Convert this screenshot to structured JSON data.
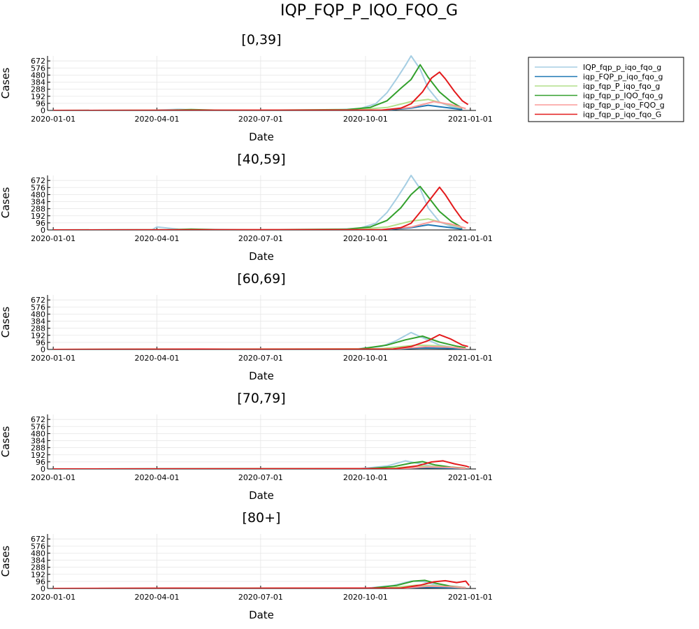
{
  "figure_title": "IQP_FQP_P_IQO_FQO_G",
  "legend": {
    "placement": "outer-right",
    "entries": [
      {
        "label": "IQP_fqp_p_iqo_fqo_g",
        "color": "#a6cee3"
      },
      {
        "label": "iqp_FQP_p_iqo_fqo_g",
        "color": "#1f78b4"
      },
      {
        "label": "iqp_fqp_P_iqo_fqo_g",
        "color": "#b2df8a"
      },
      {
        "label": "iqp_fqp_p_IQO_fqo_g",
        "color": "#33a02c"
      },
      {
        "label": "iqp_fqp_p_iqo_FQO_g",
        "color": "#fb9a99"
      },
      {
        "label": "iqp_fqp_p_iqo_fqo_G",
        "color": "#e31a1c"
      }
    ]
  },
  "chart_data": [
    {
      "type": "line",
      "title": "[0,39]",
      "xlabel": "Date",
      "ylabel": "Cases",
      "x_ticks": [
        "2020-01-01",
        "2020-04-01",
        "2020-07-01",
        "2020-10-01",
        "2021-01-01"
      ],
      "y_ticks": [
        0,
        96,
        192,
        288,
        384,
        480,
        576,
        672
      ],
      "xlim": [
        "2019-12-27",
        "2021-01-06"
      ],
      "ylim": [
        0,
        740
      ],
      "grid": true,
      "series": [
        {
          "name": "IQP_fqp_p_iqo_fqo_g",
          "x": [
            "2020-01-01",
            "2020-03-28",
            "2020-04-20",
            "2020-05-10",
            "2020-07-01",
            "2020-09-01",
            "2020-09-25",
            "2020-10-10",
            "2020-10-20",
            "2020-10-28",
            "2020-11-05",
            "2020-11-10",
            "2020-11-18",
            "2020-11-25",
            "2020-12-05",
            "2020-12-15",
            "2020-12-25"
          ],
          "y": [
            0,
            3,
            15,
            5,
            2,
            6,
            20,
            90,
            240,
            420,
            610,
            740,
            560,
            300,
            110,
            50,
            20
          ]
        },
        {
          "name": "iqp_FQP_p_iqo_fqo_g",
          "x": [
            "2020-01-01",
            "2020-10-01",
            "2020-10-20",
            "2020-11-10",
            "2020-11-25",
            "2020-12-05",
            "2020-12-15",
            "2020-12-25"
          ],
          "y": [
            0,
            0,
            5,
            30,
            70,
            50,
            30,
            10
          ]
        },
        {
          "name": "iqp_fqp_P_iqo_fqo_g",
          "x": [
            "2020-01-01",
            "2020-09-20",
            "2020-10-20",
            "2020-11-10",
            "2020-11-25",
            "2020-12-10",
            "2020-12-25"
          ],
          "y": [
            0,
            5,
            40,
            120,
            150,
            90,
            30
          ]
        },
        {
          "name": "iqp_fqp_p_IQO_fqo_g",
          "x": [
            "2020-01-01",
            "2020-04-10",
            "2020-05-01",
            "2020-05-25",
            "2020-07-01",
            "2020-09-15",
            "2020-10-05",
            "2020-10-20",
            "2020-11-01",
            "2020-11-10",
            "2020-11-18",
            "2020-11-25",
            "2020-12-05",
            "2020-12-15",
            "2020-12-25"
          ],
          "y": [
            0,
            2,
            12,
            4,
            3,
            12,
            40,
            130,
            300,
            420,
            620,
            450,
            250,
            120,
            30
          ]
        },
        {
          "name": "iqp_fqp_p_iqo_FQO_g",
          "x": [
            "2020-01-01",
            "2020-10-15",
            "2020-11-10",
            "2020-11-30",
            "2020-12-15",
            "2020-12-28"
          ],
          "y": [
            0,
            5,
            40,
            120,
            80,
            25
          ]
        },
        {
          "name": "iqp_fqp_p_iqo_fqo_G",
          "x": [
            "2020-01-01",
            "2020-10-15",
            "2020-11-01",
            "2020-11-10",
            "2020-11-20",
            "2020-11-28",
            "2020-12-05",
            "2020-12-10",
            "2020-12-18",
            "2020-12-25",
            "2020-12-30"
          ],
          "y": [
            0,
            3,
            30,
            90,
            250,
            440,
            520,
            430,
            260,
            130,
            80
          ]
        }
      ]
    },
    {
      "type": "line",
      "title": "[40,59]",
      "xlabel": "Date",
      "ylabel": "Cases",
      "x_ticks": [
        "2020-01-01",
        "2020-04-01",
        "2020-07-01",
        "2020-10-01",
        "2021-01-01"
      ],
      "y_ticks": [
        0,
        96,
        192,
        288,
        384,
        480,
        576,
        672
      ],
      "xlim": [
        "2019-12-27",
        "2021-01-06"
      ],
      "ylim": [
        0,
        740
      ],
      "grid": true,
      "series": [
        {
          "name": "IQP_fqp_p_iqo_fqo_g",
          "x": [
            "2020-01-01",
            "2020-03-28",
            "2020-04-01",
            "2020-04-20",
            "2020-07-01",
            "2020-09-01",
            "2020-09-25",
            "2020-10-10",
            "2020-10-20",
            "2020-10-28",
            "2020-11-05",
            "2020-11-10",
            "2020-11-18",
            "2020-11-25",
            "2020-12-05",
            "2020-12-15",
            "2020-12-25"
          ],
          "y": [
            0,
            5,
            40,
            10,
            2,
            6,
            20,
            90,
            240,
            420,
            610,
            740,
            560,
            300,
            110,
            50,
            20
          ]
        },
        {
          "name": "iqp_FQP_p_iqo_fqo_g",
          "x": [
            "2020-01-01",
            "2020-10-01",
            "2020-10-20",
            "2020-11-10",
            "2020-11-25",
            "2020-12-05",
            "2020-12-15",
            "2020-12-25"
          ],
          "y": [
            0,
            0,
            5,
            30,
            70,
            50,
            30,
            10
          ]
        },
        {
          "name": "iqp_fqp_P_iqo_fqo_g",
          "x": [
            "2020-01-01",
            "2020-09-20",
            "2020-10-20",
            "2020-11-10",
            "2020-11-25",
            "2020-12-10",
            "2020-12-25"
          ],
          "y": [
            0,
            5,
            40,
            120,
            150,
            90,
            30
          ]
        },
        {
          "name": "iqp_fqp_p_IQO_fqo_g",
          "x": [
            "2020-01-01",
            "2020-04-10",
            "2020-05-01",
            "2020-05-25",
            "2020-07-01",
            "2020-09-15",
            "2020-10-05",
            "2020-10-20",
            "2020-11-01",
            "2020-11-10",
            "2020-11-18",
            "2020-11-25",
            "2020-12-05",
            "2020-12-15",
            "2020-12-25"
          ],
          "y": [
            0,
            2,
            12,
            4,
            3,
            12,
            40,
            130,
            300,
            480,
            590,
            450,
            250,
            120,
            30
          ]
        },
        {
          "name": "iqp_fqp_p_iqo_FQO_g",
          "x": [
            "2020-01-01",
            "2020-10-15",
            "2020-11-10",
            "2020-11-30",
            "2020-12-15",
            "2020-12-28"
          ],
          "y": [
            0,
            5,
            40,
            120,
            80,
            25
          ]
        },
        {
          "name": "iqp_fqp_p_iqo_fqo_G",
          "x": [
            "2020-01-01",
            "2020-10-15",
            "2020-11-01",
            "2020-11-10",
            "2020-11-20",
            "2020-11-28",
            "2020-12-05",
            "2020-12-10",
            "2020-12-18",
            "2020-12-25",
            "2020-12-30"
          ],
          "y": [
            0,
            3,
            30,
            90,
            280,
            440,
            580,
            480,
            290,
            140,
            90
          ]
        }
      ]
    },
    {
      "type": "line",
      "title": "[60,69]",
      "xlabel": "Date",
      "ylabel": "Cases",
      "x_ticks": [
        "2020-01-01",
        "2020-04-01",
        "2020-07-01",
        "2020-10-01",
        "2021-01-01"
      ],
      "y_ticks": [
        0,
        96,
        192,
        288,
        384,
        480,
        576,
        672
      ],
      "xlim": [
        "2019-12-27",
        "2021-01-06"
      ],
      "ylim": [
        0,
        740
      ],
      "grid": true,
      "series": [
        {
          "name": "IQP_fqp_p_iqo_fqo_g",
          "x": [
            "2020-01-01",
            "2020-09-20",
            "2020-10-15",
            "2020-10-28",
            "2020-11-10",
            "2020-11-20",
            "2020-12-05",
            "2020-12-20"
          ],
          "y": [
            0,
            3,
            40,
            120,
            230,
            160,
            60,
            20
          ]
        },
        {
          "name": "iqp_FQP_p_iqo_fqo_g",
          "x": [
            "2020-01-01",
            "2020-10-20",
            "2020-11-20",
            "2020-12-10",
            "2020-12-28"
          ],
          "y": [
            0,
            3,
            20,
            15,
            5
          ]
        },
        {
          "name": "iqp_fqp_P_iqo_fqo_g",
          "x": [
            "2020-01-01",
            "2020-10-15",
            "2020-11-15",
            "2020-12-05",
            "2020-12-25"
          ],
          "y": [
            0,
            10,
            60,
            50,
            15
          ]
        },
        {
          "name": "iqp_fqp_p_IQO_fqo_g",
          "x": [
            "2020-01-01",
            "2020-05-01",
            "2020-06-01",
            "2020-09-25",
            "2020-10-20",
            "2020-11-05",
            "2020-11-20",
            "2020-12-05",
            "2020-12-20",
            "2020-12-28"
          ],
          "y": [
            0,
            4,
            2,
            5,
            60,
            130,
            180,
            100,
            45,
            25
          ]
        },
        {
          "name": "iqp_fqp_p_iqo_FQO_g",
          "x": [
            "2020-01-01",
            "2020-10-25",
            "2020-11-25",
            "2020-12-15",
            "2020-12-28"
          ],
          "y": [
            0,
            5,
            40,
            30,
            10
          ]
        },
        {
          "name": "iqp_fqp_p_iqo_fqo_G",
          "x": [
            "2020-01-01",
            "2020-05-10",
            "2020-06-01",
            "2020-10-25",
            "2020-11-10",
            "2020-11-25",
            "2020-12-05",
            "2020-12-15",
            "2020-12-25",
            "2020-12-30"
          ],
          "y": [
            0,
            5,
            2,
            5,
            40,
            120,
            200,
            140,
            60,
            40
          ]
        }
      ]
    },
    {
      "type": "line",
      "title": "[70,79]",
      "xlabel": "Date",
      "ylabel": "Cases",
      "x_ticks": [
        "2020-01-01",
        "2020-04-01",
        "2020-07-01",
        "2020-10-01",
        "2021-01-01"
      ],
      "y_ticks": [
        0,
        96,
        192,
        288,
        384,
        480,
        576,
        672
      ],
      "xlim": [
        "2019-12-27",
        "2021-01-06"
      ],
      "ylim": [
        0,
        740
      ],
      "grid": true,
      "series": [
        {
          "name": "IQP_fqp_p_iqo_fqo_g",
          "x": [
            "2020-01-01",
            "2020-09-25",
            "2020-10-20",
            "2020-11-05",
            "2020-11-15",
            "2020-11-28",
            "2020-12-15",
            "2020-12-28"
          ],
          "y": [
            0,
            3,
            40,
            110,
            80,
            40,
            15,
            5
          ]
        },
        {
          "name": "iqp_FQP_p_iqo_fqo_g",
          "x": [
            "2020-01-01",
            "2020-10-25",
            "2020-11-20",
            "2020-12-10",
            "2020-12-28"
          ],
          "y": [
            0,
            2,
            15,
            10,
            4
          ]
        },
        {
          "name": "iqp_fqp_P_iqo_fqo_g",
          "x": [
            "2020-01-01",
            "2020-10-20",
            "2020-11-15",
            "2020-12-05",
            "2020-12-25"
          ],
          "y": [
            0,
            5,
            40,
            30,
            10
          ]
        },
        {
          "name": "iqp_fqp_p_IQO_fqo_g",
          "x": [
            "2020-01-01",
            "2020-10-01",
            "2020-10-25",
            "2020-11-10",
            "2020-11-20",
            "2020-12-01",
            "2020-12-15",
            "2020-12-28"
          ],
          "y": [
            0,
            3,
            30,
            80,
            100,
            55,
            25,
            10
          ]
        },
        {
          "name": "iqp_fqp_p_iqo_FQO_g",
          "x": [
            "2020-01-01",
            "2020-10-30",
            "2020-11-25",
            "2020-12-15",
            "2020-12-28"
          ],
          "y": [
            0,
            3,
            25,
            20,
            8
          ]
        },
        {
          "name": "iqp_fqp_p_iqo_fqo_G",
          "x": [
            "2020-01-01",
            "2020-10-28",
            "2020-11-15",
            "2020-11-28",
            "2020-12-08",
            "2020-12-18",
            "2020-12-28",
            "2020-12-31"
          ],
          "y": [
            0,
            4,
            40,
            95,
            110,
            70,
            40,
            25
          ]
        }
      ]
    },
    {
      "type": "line",
      "title": "[80+]",
      "xlabel": "Date",
      "ylabel": "Cases",
      "x_ticks": [
        "2020-01-01",
        "2020-04-01",
        "2020-07-01",
        "2020-10-01",
        "2021-01-01"
      ],
      "y_ticks": [
        0,
        96,
        192,
        288,
        384,
        480,
        576,
        672
      ],
      "xlim": [
        "2019-12-27",
        "2021-01-06"
      ],
      "ylim": [
        0,
        740
      ],
      "grid": true,
      "series": [
        {
          "name": "IQP_fqp_p_iqo_fqo_g",
          "x": [
            "2020-01-01",
            "2020-10-01",
            "2020-10-25",
            "2020-11-10",
            "2020-11-20",
            "2020-12-01",
            "2020-12-15",
            "2020-12-28"
          ],
          "y": [
            0,
            3,
            40,
            100,
            95,
            50,
            20,
            8
          ]
        },
        {
          "name": "iqp_FQP_p_iqo_fqo_g",
          "x": [
            "2020-01-01",
            "2020-10-25",
            "2020-11-20",
            "2020-12-10",
            "2020-12-28"
          ],
          "y": [
            0,
            2,
            15,
            10,
            4
          ]
        },
        {
          "name": "iqp_fqp_P_iqo_fqo_g",
          "x": [
            "2020-01-01",
            "2020-10-20",
            "2020-11-15",
            "2020-12-05",
            "2020-12-25"
          ],
          "y": [
            0,
            5,
            45,
            35,
            10
          ]
        },
        {
          "name": "iqp_fqp_p_IQO_fqo_g",
          "x": [
            "2020-01-01",
            "2020-10-05",
            "2020-10-28",
            "2020-11-12",
            "2020-11-22",
            "2020-12-02",
            "2020-12-15",
            "2020-12-28"
          ],
          "y": [
            0,
            3,
            40,
            100,
            110,
            70,
            30,
            10
          ]
        },
        {
          "name": "iqp_fqp_p_iqo_FQO_g",
          "x": [
            "2020-01-01",
            "2020-11-01",
            "2020-11-25",
            "2020-12-15",
            "2020-12-28"
          ],
          "y": [
            0,
            3,
            30,
            25,
            10
          ]
        },
        {
          "name": "iqp_fqp_p_iqo_fqo_G",
          "x": [
            "2020-01-01",
            "2020-04-15",
            "2020-06-20",
            "2020-11-01",
            "2020-11-18",
            "2020-11-30",
            "2020-12-10",
            "2020-12-20",
            "2020-12-28",
            "2020-12-31"
          ],
          "y": [
            0,
            4,
            3,
            5,
            45,
            90,
            105,
            80,
            100,
            40
          ]
        }
      ]
    }
  ]
}
